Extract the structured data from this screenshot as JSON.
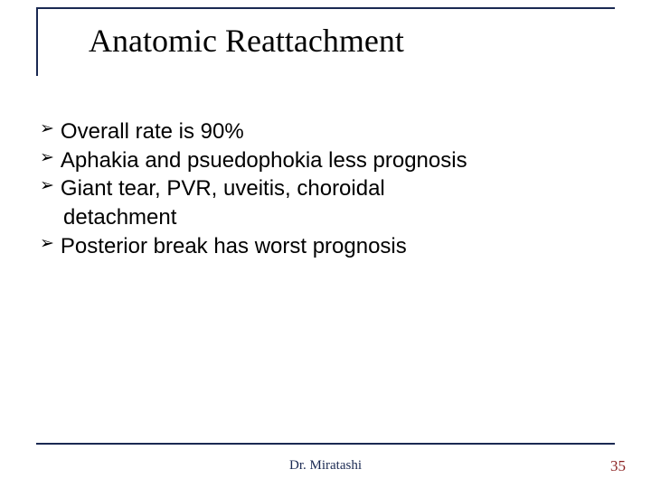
{
  "colors": {
    "rule": "#1a2952",
    "text": "#000000",
    "footer": "#1a2952",
    "pageNumber": "#8a1f1f",
    "background": "#ffffff"
  },
  "title": "Anatomic Reattachment",
  "bullets": [
    {
      "text": "Overall rate is 90%"
    },
    {
      "text": "Aphakia and psuedophokia less prognosis"
    },
    {
      "text": "Giant tear, PVR, uveitis, choroidal",
      "cont": "detachment"
    },
    {
      "text": "Posterior break has worst prognosis"
    }
  ],
  "footer": {
    "author": "Dr. Miratashi",
    "page": "35"
  },
  "typography": {
    "titleFont": "Times New Roman",
    "titleSize": 36,
    "bulletFont": "Arial",
    "bulletSize": 24,
    "footerSize": 15
  }
}
